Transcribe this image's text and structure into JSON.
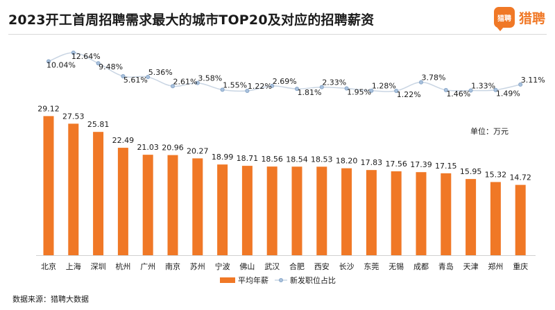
{
  "header": {
    "title": "2023开工首周招聘需求最大的城市TOP20及对应的招聘薪资",
    "logo_badge_text": "猎聘",
    "logo_text": "猎聘"
  },
  "unit_label": "单位：万元",
  "source_label": "数据来源：猎聘大数据",
  "colors": {
    "bar": "#f07826",
    "line": "#c9d5e3",
    "marker": "#a9c1dc",
    "marker_stroke": "#7f9fc4"
  },
  "chart_data": {
    "type": "bar",
    "title": "2023开工首周招聘需求最大的城市TOP20及对应的招聘薪资",
    "categories": [
      "北京",
      "上海",
      "深圳",
      "杭州",
      "广州",
      "南京",
      "苏州",
      "宁波",
      "佛山",
      "武汉",
      "合肥",
      "西安",
      "长沙",
      "东莞",
      "无锡",
      "成都",
      "青岛",
      "天津",
      "郑州",
      "重庆"
    ],
    "ylabel": "单位：万元",
    "series": [
      {
        "name": "平均年薪",
        "type": "bar",
        "values": [
          29.12,
          27.53,
          25.81,
          22.49,
          21.03,
          20.96,
          20.27,
          18.99,
          18.71,
          18.56,
          18.54,
          18.53,
          18.2,
          17.83,
          17.56,
          17.39,
          17.15,
          15.95,
          15.32,
          14.72
        ],
        "labels": [
          "29.12",
          "27.53",
          "25.81",
          "22.49",
          "21.03",
          "20.96",
          "20.27",
          "18.99",
          "18.71",
          "18.56",
          "18.54",
          "18.53",
          "18.20",
          "17.83",
          "17.56",
          "17.39",
          "17.15",
          "15.95",
          "15.32",
          "14.72"
        ]
      },
      {
        "name": "新发职位占比",
        "type": "line",
        "values": [
          10.04,
          12.64,
          9.48,
          5.61,
          5.36,
          2.61,
          3.58,
          1.55,
          1.22,
          2.69,
          1.81,
          2.33,
          1.95,
          1.28,
          1.22,
          3.78,
          1.46,
          1.33,
          1.49,
          3.11
        ],
        "labels": [
          "10.04%",
          "12.64%",
          "9.48%",
          "5.61%",
          "5.36%",
          "2.61%",
          "3.58%",
          "1.55%",
          "1.22%",
          "2.69%",
          "1.81%",
          "2.33%",
          "1.95%",
          "1.28%",
          "1.22%",
          "3.78%",
          "1.46%",
          "1.33%",
          "1.49%",
          "3.11%"
        ]
      }
    ],
    "grid": false,
    "legend_position": "bottom"
  }
}
